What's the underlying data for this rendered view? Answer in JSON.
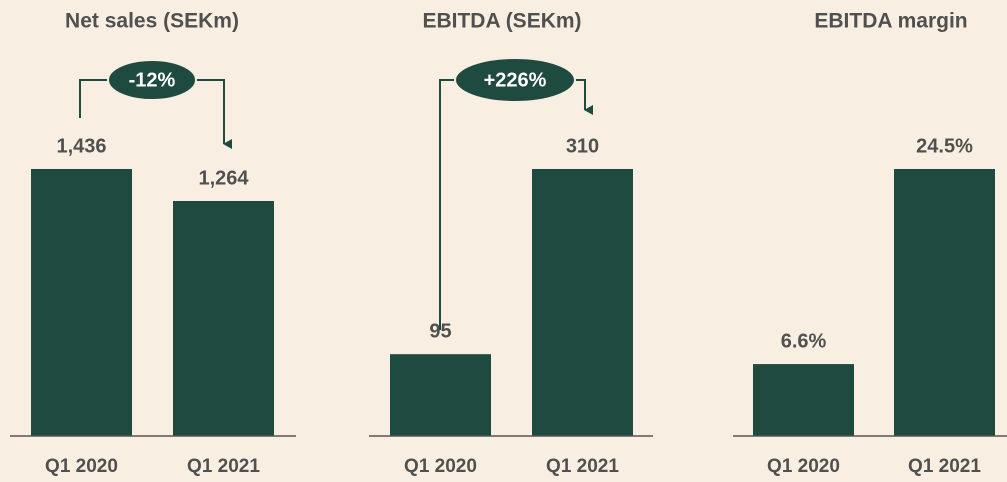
{
  "chart_data": [
    {
      "type": "bar",
      "title": "Net sales (SEKm)",
      "categories": [
        "Q1 2020",
        "Q1 2021"
      ],
      "values": [
        1436,
        1264
      ],
      "value_labels": [
        "1,436",
        "1,264"
      ],
      "color": "#1f4a3f",
      "annotation": "-12%"
    },
    {
      "type": "bar",
      "title": "EBITDA (SEKm)",
      "categories": [
        "Q1 2020",
        "Q1 2021"
      ],
      "values": [
        95,
        310
      ],
      "color": "#1f4a3f",
      "annotation": "+226%"
    },
    {
      "type": "bar",
      "title": "EBITDA margin",
      "categories": [
        "Q1 2020",
        "Q1 2021"
      ],
      "values": [
        6.6,
        24.5
      ],
      "value_labels": [
        "6.6%",
        "24.5%"
      ],
      "color": "#1f4a3f"
    }
  ]
}
